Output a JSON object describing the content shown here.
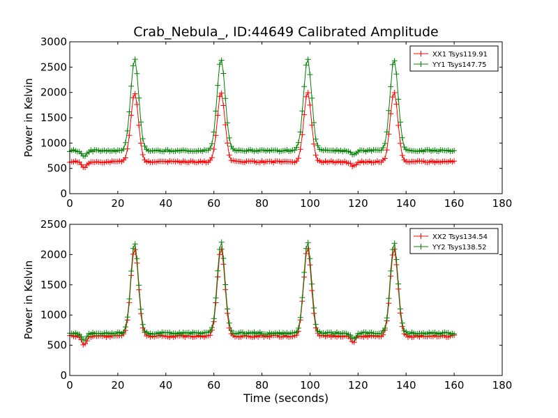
{
  "figure": {
    "title": "Crab_Nebula_, ID:44649 Calibrated Amplitude",
    "xlabel": "Time (seconds)"
  },
  "chart_data": [
    {
      "type": "line",
      "ylabel": "Power in Kelvin",
      "xlim": [
        0,
        180
      ],
      "ylim": [
        0,
        3000
      ],
      "xticks": [
        "0",
        "20",
        "40",
        "60",
        "80",
        "100",
        "120",
        "140",
        "160",
        "180"
      ],
      "yticks": [
        "0",
        "500",
        "1000",
        "1500",
        "2000",
        "2500",
        "3000"
      ],
      "legend_position": "top-right",
      "series": [
        {
          "name": "XX1 Tsys119.91",
          "color": "#ff0000",
          "base": 630,
          "peak": 2000,
          "peak_times": [
            27,
            63,
            99,
            135
          ],
          "sigma": 1.6,
          "dips": [
            [
              6,
              520
            ],
            [
              118,
              540
            ]
          ]
        },
        {
          "name": "YY1 Tsys147.75",
          "color": "#008000",
          "base": 850,
          "peak": 2650,
          "peak_times": [
            27,
            63,
            99,
            135
          ],
          "sigma": 1.7,
          "dips": [
            [
              6,
              720
            ],
            [
              118,
              770
            ]
          ]
        }
      ]
    },
    {
      "type": "line",
      "ylabel": "Power in Kelvin",
      "xlim": [
        0,
        180
      ],
      "ylim": [
        0,
        2500
      ],
      "xticks": [
        "0",
        "20",
        "40",
        "60",
        "80",
        "100",
        "120",
        "140",
        "160",
        "180"
      ],
      "yticks": [
        "0",
        "500",
        "1000",
        "1500",
        "2000",
        "2500"
      ],
      "legend_position": "top-right",
      "series": [
        {
          "name": "XX2 Tsys134.54",
          "color": "#ff0000",
          "base": 650,
          "peak": 2100,
          "peak_times": [
            27,
            63,
            99,
            135
          ],
          "sigma": 1.6,
          "dips": [
            [
              6,
              510
            ],
            [
              118,
              560
            ]
          ]
        },
        {
          "name": "YY2 Tsys138.52",
          "color": "#008000",
          "base": 700,
          "peak": 2200,
          "peak_times": [
            27,
            63,
            99,
            135
          ],
          "sigma": 1.6,
          "dips": [
            [
              6,
              560
            ],
            [
              118,
              600
            ]
          ]
        }
      ]
    }
  ]
}
